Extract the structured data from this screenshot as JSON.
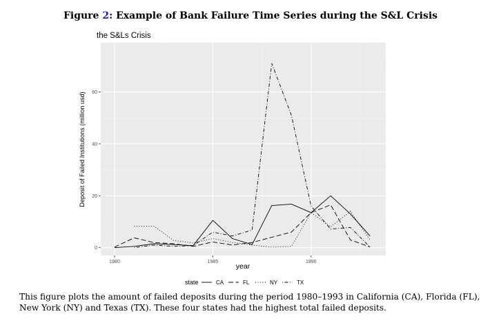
{
  "figure": {
    "label": "Figure",
    "number": "2",
    "title": ": Example of Bank Failure Time Series during the S&L Crisis"
  },
  "chart_data": {
    "type": "line",
    "title": "the S&Ls Crisis",
    "xlabel": "year",
    "ylabel": "Deposit of Failed Institutions (million usd)",
    "xlim": [
      1979.3,
      1993.8
    ],
    "ylim": [
      -3,
      79
    ],
    "x_ticks": [
      1980,
      1985,
      1990
    ],
    "y_ticks": [
      0,
      20,
      40,
      60
    ],
    "grid": true,
    "legend_position": "bottom",
    "legend_title": "state",
    "series": [
      {
        "name": "CA",
        "dash": "solid",
        "points": [
          [
            1980,
            0
          ],
          [
            1981,
            0.5
          ],
          [
            1982,
            1.5
          ],
          [
            1983,
            1.2
          ],
          [
            1984,
            0.8
          ],
          [
            1985,
            10.5
          ],
          [
            1986,
            3.5
          ],
          [
            1987,
            1.2
          ],
          [
            1988,
            16.2
          ],
          [
            1989,
            16.8
          ],
          [
            1990,
            13.5
          ],
          [
            1991,
            20
          ],
          [
            1992,
            13
          ],
          [
            1993,
            4.5
          ]
        ]
      },
      {
        "name": "FL",
        "dash": "longdash",
        "points": [
          [
            1980,
            0.2
          ],
          [
            1981,
            3.8
          ],
          [
            1982,
            2
          ],
          [
            1983,
            1.5
          ],
          [
            1984,
            0.5
          ],
          [
            1985,
            2.2
          ],
          [
            1986,
            1
          ],
          [
            1987,
            2
          ],
          [
            1988,
            4
          ],
          [
            1989,
            6
          ],
          [
            1990,
            13.5
          ],
          [
            1991,
            16.5
          ],
          [
            1992,
            3
          ],
          [
            1993,
            0.3
          ]
        ]
      },
      {
        "name": "NY",
        "dash": "dotted",
        "points": [
          [
            1981,
            8.3
          ],
          [
            1982,
            8.3
          ],
          [
            1983,
            2.8
          ],
          [
            1984,
            1.8
          ],
          [
            1985,
            3.5
          ],
          [
            1986,
            2
          ],
          [
            1987,
            1
          ],
          [
            1988,
            0.2
          ],
          [
            1989,
            0.5
          ],
          [
            1990,
            13.5
          ],
          [
            1991,
            8
          ],
          [
            1992,
            14
          ],
          [
            1993,
            3
          ]
        ]
      },
      {
        "name": "TX",
        "dash": "dotdash",
        "points": [
          [
            1981,
            0
          ],
          [
            1982,
            1
          ],
          [
            1983,
            0.5
          ],
          [
            1984,
            0.8
          ],
          [
            1985,
            6
          ],
          [
            1986,
            4.5
          ],
          [
            1987,
            6.8
          ],
          [
            1988,
            71
          ],
          [
            1989,
            51
          ],
          [
            1990,
            16
          ],
          [
            1991,
            7.2
          ],
          [
            1992,
            7.8
          ],
          [
            1993,
            0.2
          ]
        ]
      }
    ]
  },
  "caption": {
    "text": "This figure plots the amount of failed deposits during the period 1980–1993 in California (CA), Florida (FL), New York (NY) and Texas (TX). These four states had the highest total failed deposits."
  }
}
